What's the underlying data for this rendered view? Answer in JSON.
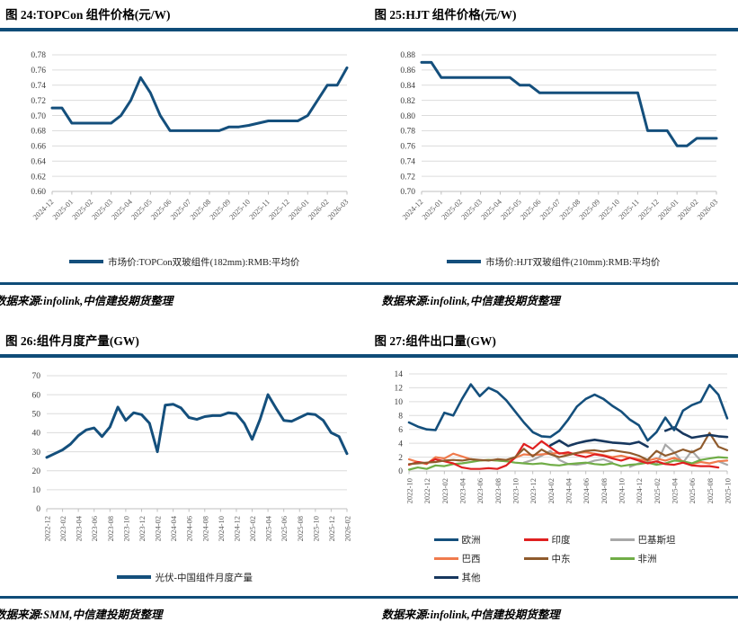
{
  "page": {
    "background": "#FFFFFF",
    "rule_color": "#0F4C78",
    "gridline_color": "#DCDCDC"
  },
  "figures": [
    {
      "title": "图 24:TOPCon 组件价格(元/W)",
      "caption": "数据来源:infolink,中信建投期货整理"
    },
    {
      "title": "图 25:HJT 组件价格(元/W)",
      "caption": "数据来源:infolink,中信建投期货整理"
    },
    {
      "title": "图 26:组件月度产量(GW)",
      "caption": "数据来源:SMM,中信建投期货整理"
    },
    {
      "title": "图 27:组件出口量(GW)",
      "caption": "数据来源:infolink,中信建投期货整理"
    }
  ],
  "chart_data": [
    {
      "type": "line",
      "title": "TOPCon 组件价格(元/W)",
      "ylim": [
        0.6,
        0.78
      ],
      "ystep": 0.02,
      "ydecimals": 2,
      "grid": true,
      "legend_position": "bottom",
      "x_labels": [
        "2024-12",
        "2025-01",
        "2025-02",
        "2025-03",
        "2025-04",
        "2025-05",
        "2025-06",
        "2025-07",
        "2025-08",
        "2025-09",
        "2025-10",
        "2025-11",
        "2025-12",
        "2026-01",
        "2026-02",
        "2026-03"
      ],
      "label_every": 2,
      "series": [
        {
          "name": "市场价:TOPCon双玻组件(182mm):RMB:平均价",
          "color": "#144F7C",
          "values": [
            0.71,
            0.71,
            0.69,
            0.69,
            0.69,
            0.69,
            0.69,
            0.7,
            0.72,
            0.75,
            0.73,
            0.7,
            0.68,
            0.68,
            0.68,
            0.68,
            0.68,
            0.68,
            0.685,
            0.685,
            0.687,
            0.69,
            0.693,
            0.693,
            0.693,
            0.693,
            0.7,
            0.72,
            0.74,
            0.74,
            0.763
          ]
        }
      ]
    },
    {
      "type": "line",
      "title": "HJT 组件价格(元/W)",
      "ylim": [
        0.7,
        0.88
      ],
      "ystep": 0.02,
      "ydecimals": 2,
      "grid": true,
      "legend_position": "bottom",
      "x_labels": [
        "2024-12",
        "2025-01",
        "2025-02",
        "2025-03",
        "2025-04",
        "2025-05",
        "2025-06",
        "2025-07",
        "2025-08",
        "2025-09",
        "2025-10",
        "2025-11",
        "2025-12",
        "2026-01",
        "2026-02",
        "2026-03"
      ],
      "label_every": 2,
      "series": [
        {
          "name": "市场价:HJT双玻组件(210mm):RMB:平均价",
          "color": "#144F7C",
          "values": [
            0.87,
            0.87,
            0.85,
            0.85,
            0.85,
            0.85,
            0.85,
            0.85,
            0.85,
            0.85,
            0.84,
            0.84,
            0.83,
            0.83,
            0.83,
            0.83,
            0.83,
            0.83,
            0.83,
            0.83,
            0.83,
            0.83,
            0.83,
            0.78,
            0.78,
            0.78,
            0.76,
            0.76,
            0.77,
            0.77,
            0.77
          ]
        }
      ]
    },
    {
      "type": "line",
      "title": "组件月度产量(GW)",
      "ylim": [
        0,
        70
      ],
      "ystep": 10,
      "ydecimals": 0,
      "grid": true,
      "legend_position": "bottom",
      "x_labels": [
        "2022-12",
        "2023-02",
        "2023-04",
        "2023-06",
        "2023-08",
        "2023-10",
        "2023-12",
        "2024-02",
        "2024-04",
        "2024-06",
        "2024-08",
        "2024-10",
        "2024-12",
        "2025-02",
        "2025-04",
        "2025-06",
        "2025-08",
        "2025-10",
        "2025-12",
        "2026-02"
      ],
      "label_every": 2,
      "series": [
        {
          "name": "光伏-中国组件月度产量",
          "color": "#144F7C",
          "values": [
            27,
            29,
            31,
            34,
            38.5,
            41.5,
            42.5,
            38,
            43,
            53.5,
            46.5,
            50.5,
            49.5,
            45,
            30,
            54.5,
            55,
            53,
            48,
            47,
            48.5,
            49,
            49,
            50.5,
            50,
            45,
            36.5,
            47,
            60,
            53,
            46.5,
            46,
            48,
            50,
            49.5,
            46.5,
            40,
            38,
            29
          ]
        }
      ]
    },
    {
      "type": "line",
      "title": "组件出口量(GW)",
      "ylim": [
        0,
        14
      ],
      "ystep": 2,
      "ydecimals": 0,
      "grid": true,
      "legend_position": "bottom",
      "x_labels": [
        "2022-10",
        "2022-12",
        "2023-02",
        "2023-04",
        "2023-06",
        "2023-08",
        "2023-10",
        "2023-12",
        "2024-02",
        "2024-04",
        "2024-06",
        "2024-08",
        "2024-10",
        "2024-12",
        "2025-02",
        "2025-04",
        "2025-06",
        "2025-08",
        "2025-10"
      ],
      "label_every": 2,
      "series": [
        {
          "name": "欧洲",
          "color": "#144F7C",
          "values": [
            7.0,
            6.4,
            6.0,
            5.9,
            8.4,
            8.0,
            10.4,
            12.5,
            10.8,
            12.0,
            11.4,
            10.2,
            8.6,
            7.0,
            5.6,
            5.0,
            4.9,
            5.8,
            7.4,
            9.3,
            10.4,
            11.0,
            10.4,
            9.4,
            8.6,
            7.4,
            6.6,
            4.4,
            5.6,
            7.7,
            5.9,
            8.7,
            9.5,
            10.0,
            12.4,
            11.0,
            7.6
          ]
        },
        {
          "name": "印度",
          "color": "#E02020",
          "values": [
            0.9,
            1.3,
            1.1,
            1.7,
            1.4,
            1.1,
            0.5,
            0.3,
            0.3,
            0.4,
            0.3,
            0.8,
            1.9,
            3.9,
            3.2,
            4.3,
            3.4,
            2.5,
            2.7,
            2.3,
            2.0,
            2.4,
            2.2,
            1.8,
            1.5,
            1.9,
            1.5,
            1.1,
            1.4,
            1.0,
            0.9,
            1.2,
            0.8,
            0.7,
            0.7,
            0.5,
            null
          ]
        },
        {
          "name": "巴基斯坦",
          "color": "#A8A8A8",
          "values": [
            null,
            null,
            null,
            null,
            null,
            null,
            null,
            null,
            null,
            null,
            null,
            null,
            null,
            1.2,
            1.6,
            2.2,
            2.9,
            1.6,
            1.0,
            0.9,
            1.1,
            1.5,
            1.7,
            1.2,
            null,
            0.6,
            1.1,
            1.4,
            1.0,
            3.8,
            2.7,
            1.2,
            2.9,
            1.5,
            null,
            1.4,
            0.9
          ]
        },
        {
          "name": "巴西",
          "color": "#F07B4D",
          "values": [
            1.7,
            1.3,
            1.0,
            2.0,
            1.8,
            2.5,
            2.1,
            1.7,
            1.5,
            1.6,
            1.5,
            1.4,
            1.9,
            2.4,
            2.3,
            2.4,
            2.5,
            2.6,
            2.4,
            2.6,
            2.7,
            2.5,
            2.3,
            2.0,
            2.2,
            1.9,
            1.7,
            1.5,
            1.8,
            1.5,
            1.9,
            1.4,
            1.0,
            1.3,
            1.1,
            1.4,
            1.5
          ]
        },
        {
          "name": "中东",
          "color": "#8F5B2D",
          "values": [
            1.0,
            1.1,
            1.2,
            1.3,
            1.5,
            1.6,
            1.5,
            1.7,
            1.6,
            1.5,
            1.7,
            1.6,
            2.0,
            3.2,
            2.1,
            3.1,
            2.4,
            2.0,
            2.3,
            2.6,
            2.9,
            3.0,
            2.8,
            3.0,
            2.8,
            2.6,
            2.2,
            1.6,
            2.9,
            2.2,
            2.6,
            3.1,
            2.7,
            3.3,
            5.5,
            3.5,
            3.0
          ]
        },
        {
          "name": "非洲",
          "color": "#70AD47",
          "values": [
            0.2,
            0.5,
            0.3,
            0.8,
            0.7,
            1.0,
            1.1,
            1.3,
            1.5,
            1.6,
            1.5,
            1.4,
            1.2,
            1.1,
            1.0,
            1.1,
            0.9,
            0.8,
            1.0,
            1.1,
            1.2,
            1.0,
            0.9,
            1.1,
            0.7,
            0.9,
            1.0,
            1.2,
            0.9,
            1.1,
            1.5,
            1.4,
            1.1,
            1.6,
            1.8,
            2.0,
            1.9
          ]
        },
        {
          "name": "其他",
          "color": "#17375E",
          "values": [
            null,
            null,
            null,
            null,
            null,
            null,
            null,
            null,
            null,
            null,
            null,
            null,
            null,
            null,
            null,
            null,
            3.7,
            4.4,
            3.6,
            4.0,
            4.3,
            4.5,
            4.3,
            4.1,
            4.0,
            3.9,
            4.2,
            3.5,
            null,
            5.8,
            6.3,
            5.4,
            4.8,
            5.0,
            5.2,
            5.0,
            4.9
          ]
        }
      ]
    }
  ]
}
